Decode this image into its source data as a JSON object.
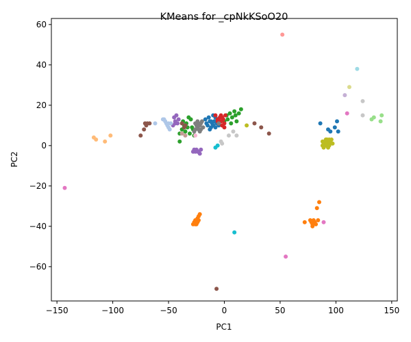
{
  "chart_data": {
    "type": "scatter",
    "title": "KMeans for _cpNkKSoO20",
    "xlabel": "PC1",
    "ylabel": "PC2",
    "xlim": [
      -155,
      155
    ],
    "ylim": [
      -77,
      63
    ],
    "xticks": [
      -150,
      -100,
      -50,
      0,
      50,
      100,
      150
    ],
    "yticks": [
      -60,
      -40,
      -20,
      0,
      20,
      40,
      60
    ],
    "xtick_labels": [
      "−150",
      "−100",
      "−50",
      "0",
      "50",
      "100",
      "150"
    ],
    "ytick_labels": [
      "−60",
      "−40",
      "−20",
      "0",
      "20",
      "40",
      "60"
    ],
    "grid": false,
    "legend": false,
    "clusters": [
      {
        "color": "#1f77b4",
        "points": [
          [
            -17,
            13
          ],
          [
            -15,
            10
          ],
          [
            -14,
            14
          ],
          [
            -13,
            12
          ],
          [
            -12,
            9
          ],
          [
            -11,
            11
          ],
          [
            -10,
            10
          ],
          [
            -9,
            12
          ],
          [
            -8,
            9
          ],
          [
            -7,
            11
          ],
          [
            -6,
            13
          ],
          [
            -10,
            15
          ],
          [
            -13,
            8
          ],
          [
            -16,
            11
          ],
          [
            -5,
            10
          ],
          [
            -8,
            14
          ],
          [
            86,
            11
          ],
          [
            93,
            8
          ],
          [
            99,
            9
          ],
          [
            101,
            12
          ],
          [
            102,
            7
          ],
          [
            95,
            7
          ],
          [
            -4,
            12
          ],
          [
            -12,
            12
          ]
        ]
      },
      {
        "color": "#ff7f0e",
        "points": [
          [
            -28,
            -39
          ],
          [
            -27,
            -38
          ],
          [
            -26,
            -37
          ],
          [
            -25,
            -39
          ],
          [
            -24,
            -36
          ],
          [
            -23,
            -35
          ],
          [
            -22,
            -34
          ],
          [
            -25,
            -38
          ],
          [
            -26,
            -39
          ],
          [
            -23,
            -37
          ],
          [
            72,
            -38
          ],
          [
            77,
            -37
          ],
          [
            78,
            -38
          ],
          [
            79,
            -40
          ],
          [
            80,
            -37
          ],
          [
            81,
            -38
          ],
          [
            82,
            -39
          ],
          [
            84,
            -37
          ],
          [
            83,
            -31
          ],
          [
            85,
            -28
          ],
          [
            79,
            -39
          ],
          [
            -24,
            -38
          ]
        ]
      },
      {
        "color": "#2ca02c",
        "points": [
          [
            -40,
            6
          ],
          [
            -38,
            8
          ],
          [
            -36,
            10
          ],
          [
            -35,
            7
          ],
          [
            -33,
            9
          ],
          [
            -31,
            6
          ],
          [
            -30,
            13
          ],
          [
            -28,
            8
          ],
          [
            -27,
            5
          ],
          [
            -37,
            12
          ],
          [
            -34,
            11
          ],
          [
            -32,
            14
          ],
          [
            0,
            12
          ],
          [
            2,
            15
          ],
          [
            3,
            13
          ],
          [
            5,
            16
          ],
          [
            7,
            14
          ],
          [
            9,
            17
          ],
          [
            10,
            15
          ],
          [
            11,
            12
          ],
          [
            13,
            16
          ],
          [
            15,
            18
          ],
          [
            6,
            11
          ],
          [
            -40,
            2
          ],
          [
            -29,
            9
          ]
        ]
      },
      {
        "color": "#d62728",
        "points": [
          [
            -8,
            15
          ],
          [
            -6,
            13
          ],
          [
            -5,
            11
          ],
          [
            -4,
            14
          ],
          [
            -3,
            12
          ],
          [
            -2,
            10
          ],
          [
            -1,
            13
          ],
          [
            0,
            11
          ],
          [
            1,
            15
          ],
          [
            -3,
            15
          ],
          [
            -6,
            12
          ],
          [
            -2,
            14
          ],
          [
            0,
            9
          ],
          [
            -5,
            13
          ]
        ]
      },
      {
        "color": "#9467bd",
        "points": [
          [
            -45,
            14
          ],
          [
            -44,
            12
          ],
          [
            -43,
            15
          ],
          [
            -42,
            11
          ],
          [
            -41,
            13
          ],
          [
            -46,
            10
          ],
          [
            -44,
            11
          ],
          [
            -28,
            -3
          ],
          [
            -26,
            -3
          ],
          [
            -25,
            -2
          ],
          [
            -24,
            -3
          ],
          [
            -23,
            -3
          ],
          [
            -21,
            -2
          ],
          [
            -27,
            -2
          ],
          [
            -22,
            -4
          ]
        ]
      },
      {
        "color": "#8c564b",
        "points": [
          [
            -75,
            5
          ],
          [
            -72,
            8
          ],
          [
            -70,
            10
          ],
          [
            -69,
            11
          ],
          [
            -67,
            11
          ],
          [
            -71,
            11
          ],
          [
            -38,
            11
          ],
          [
            -36,
            9
          ],
          [
            27,
            11
          ],
          [
            33,
            9
          ],
          [
            40,
            6
          ],
          [
            -7,
            -71
          ],
          [
            -35,
            10
          ]
        ]
      },
      {
        "color": "#e377c2",
        "points": [
          [
            -143,
            -21
          ],
          [
            55,
            -55
          ],
          [
            89,
            -38
          ],
          [
            110,
            16
          ]
        ]
      },
      {
        "color": "#7f7f7f",
        "points": [
          [
            -26,
            8
          ],
          [
            -25,
            10
          ],
          [
            -24,
            9
          ],
          [
            -23,
            11
          ],
          [
            -22,
            10
          ],
          [
            -21,
            8
          ],
          [
            -20,
            12
          ],
          [
            -27,
            7
          ],
          [
            -24,
            12
          ],
          [
            -22,
            7
          ],
          [
            -19,
            9
          ],
          [
            -23,
            8
          ],
          [
            -26,
            11
          ],
          [
            -21,
            11
          ],
          [
            -5,
            11
          ]
        ]
      },
      {
        "color": "#bcbd22",
        "points": [
          [
            88,
            2
          ],
          [
            89,
            1
          ],
          [
            90,
            0
          ],
          [
            91,
            3
          ],
          [
            92,
            1
          ],
          [
            93,
            2
          ],
          [
            94,
            0
          ],
          [
            95,
            1
          ],
          [
            96,
            3
          ],
          [
            89,
            -1
          ],
          [
            91,
            0
          ],
          [
            93,
            -1
          ],
          [
            95,
            2
          ],
          [
            90,
            2
          ],
          [
            92,
            3
          ],
          [
            97,
            1
          ],
          [
            88,
            0
          ],
          [
            94,
            3
          ],
          [
            93,
            0
          ],
          [
            91,
            1
          ],
          [
            20,
            10
          ]
        ]
      },
      {
        "color": "#17becf",
        "points": [
          [
            9,
            -43
          ],
          [
            -8,
            -1
          ],
          [
            -6,
            0
          ]
        ]
      },
      {
        "color": "#aec7e8",
        "points": [
          [
            -55,
            13
          ],
          [
            -53,
            12
          ],
          [
            -52,
            11
          ],
          [
            -51,
            10
          ],
          [
            -50,
            9
          ],
          [
            -49,
            8
          ],
          [
            -48,
            11
          ],
          [
            -54,
            13
          ],
          [
            -62,
            11
          ],
          [
            -50,
            11
          ]
        ]
      },
      {
        "color": "#ffbb78",
        "points": [
          [
            -117,
            4
          ],
          [
            -115,
            3
          ],
          [
            -107,
            2
          ],
          [
            -102,
            5
          ]
        ]
      },
      {
        "color": "#98df8a",
        "points": [
          [
            132,
            13
          ],
          [
            134,
            14
          ],
          [
            140,
            12
          ],
          [
            141,
            15
          ]
        ]
      },
      {
        "color": "#ff9896",
        "points": [
          [
            52,
            55
          ]
        ]
      },
      {
        "color": "#c5b0d5",
        "points": [
          [
            108,
            25
          ]
        ]
      },
      {
        "color": "#c49c94",
        "points": [
          [
            -38,
            6
          ],
          [
            -35,
            5
          ]
        ]
      },
      {
        "color": "#f7b6d2",
        "points": [
          [
            -26,
            5
          ]
        ]
      },
      {
        "color": "#c7c7c7",
        "points": [
          [
            -2,
            1
          ],
          [
            -3,
            2
          ],
          [
            4,
            5
          ],
          [
            8,
            7
          ],
          [
            11,
            5
          ],
          [
            124,
            22
          ],
          [
            124,
            15
          ]
        ]
      },
      {
        "color": "#dbdb8d",
        "points": [
          [
            112,
            29
          ]
        ]
      },
      {
        "color": "#9edae5",
        "points": [
          [
            119,
            38
          ]
        ]
      }
    ]
  }
}
